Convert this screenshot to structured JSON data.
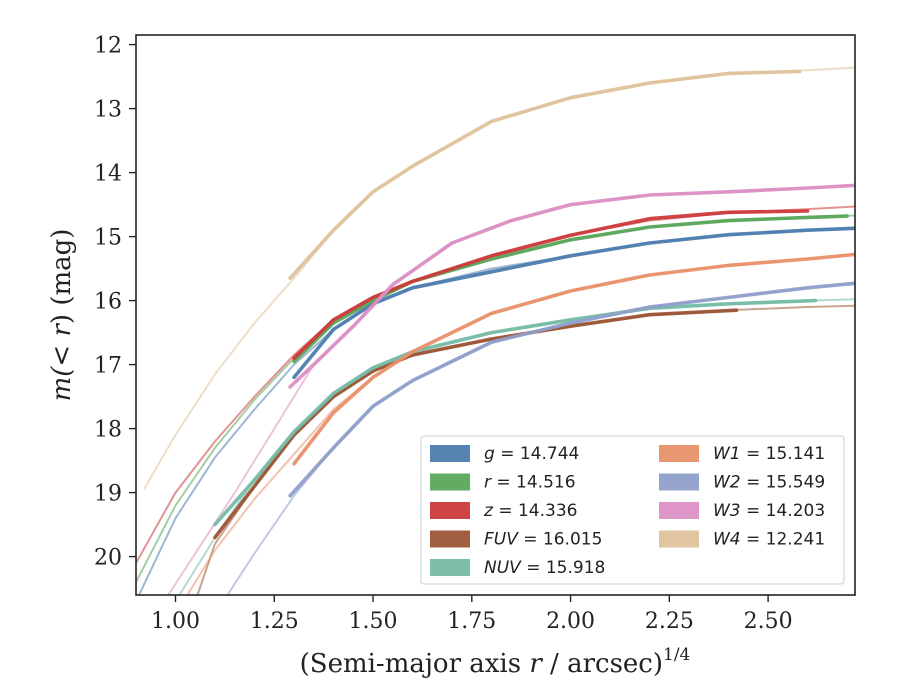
{
  "chart_data": {
    "type": "line",
    "title": "",
    "xlabel_prefix": "(Semi-major axis ",
    "xlabel_var": "r",
    "xlabel_suffix": " / arcsec)",
    "xlabel_power": "1/4",
    "ylabel_prefix": "m(",
    "ylabel_inner": "< r",
    "ylabel_suffix": ") (mag)",
    "xlim": [
      0.9,
      2.72
    ],
    "ylim": [
      20.6,
      11.85
    ],
    "y_inverted": true,
    "grid": false,
    "legend_position": "lower-right",
    "x_ticks": [
      1.0,
      1.25,
      1.5,
      1.75,
      2.0,
      2.25,
      2.5
    ],
    "x_tick_labels": [
      "1.00",
      "1.25",
      "1.50",
      "1.75",
      "2.00",
      "2.25",
      "2.50"
    ],
    "y_ticks": [
      12,
      13,
      14,
      15,
      16,
      17,
      18,
      19,
      20
    ],
    "y_tick_labels": [
      "12",
      "13",
      "14",
      "15",
      "16",
      "17",
      "18",
      "19",
      "20"
    ],
    "series": [
      {
        "name": "g = 14.744",
        "band": "g",
        "value": "14.744",
        "color": "#4c7dae",
        "faint": [
          [
            0.9,
            20.7
          ],
          [
            1.0,
            19.4
          ],
          [
            1.1,
            18.45
          ],
          [
            1.2,
            17.7
          ],
          [
            1.3,
            17.0
          ],
          [
            1.4,
            16.45
          ],
          [
            1.5,
            16.05
          ],
          [
            1.6,
            15.8
          ],
          [
            1.7,
            15.65
          ],
          [
            1.8,
            15.5
          ],
          [
            2.0,
            15.3
          ],
          [
            2.2,
            15.1
          ],
          [
            2.4,
            14.97
          ],
          [
            2.6,
            14.9
          ],
          [
            2.72,
            14.87
          ]
        ],
        "bold": [
          [
            1.3,
            17.2
          ],
          [
            1.4,
            16.45
          ],
          [
            1.5,
            16.05
          ],
          [
            1.6,
            15.8
          ],
          [
            1.8,
            15.55
          ],
          [
            2.0,
            15.3
          ],
          [
            2.2,
            15.1
          ],
          [
            2.4,
            14.97
          ],
          [
            2.6,
            14.9
          ],
          [
            2.72,
            14.87
          ]
        ]
      },
      {
        "name": "r = 14.516",
        "band": "r",
        "value": "14.516",
        "color": "#5aa65a",
        "faint": [
          [
            0.9,
            20.4
          ],
          [
            1.0,
            19.2
          ],
          [
            1.1,
            18.3
          ],
          [
            1.2,
            17.55
          ],
          [
            1.3,
            16.9
          ],
          [
            1.4,
            16.35
          ],
          [
            1.5,
            16.0
          ],
          [
            1.6,
            15.7
          ],
          [
            1.8,
            15.35
          ],
          [
            2.0,
            15.05
          ],
          [
            2.2,
            14.85
          ],
          [
            2.4,
            14.75
          ],
          [
            2.6,
            14.7
          ],
          [
            2.72,
            14.67
          ]
        ],
        "bold": [
          [
            1.3,
            16.95
          ],
          [
            1.4,
            16.35
          ],
          [
            1.5,
            16.0
          ],
          [
            1.6,
            15.7
          ],
          [
            1.8,
            15.35
          ],
          [
            2.0,
            15.05
          ],
          [
            2.2,
            14.85
          ],
          [
            2.4,
            14.75
          ],
          [
            2.6,
            14.7
          ],
          [
            2.7,
            14.68
          ]
        ]
      },
      {
        "name": "z = 14.336",
        "band": "z",
        "value": "14.336",
        "color": "#cc3a3a",
        "faint": [
          [
            0.9,
            20.1
          ],
          [
            1.0,
            19.0
          ],
          [
            1.1,
            18.2
          ],
          [
            1.2,
            17.5
          ],
          [
            1.3,
            16.85
          ],
          [
            1.4,
            16.3
          ],
          [
            1.5,
            15.95
          ],
          [
            1.6,
            15.7
          ],
          [
            1.8,
            15.3
          ],
          [
            2.0,
            14.98
          ],
          [
            2.2,
            14.75
          ],
          [
            2.4,
            14.63
          ],
          [
            2.6,
            14.57
          ],
          [
            2.72,
            14.53
          ]
        ],
        "bold": [
          [
            1.3,
            16.9
          ],
          [
            1.4,
            16.3
          ],
          [
            1.5,
            15.95
          ],
          [
            1.6,
            15.7
          ],
          [
            1.8,
            15.3
          ],
          [
            2.0,
            14.98
          ],
          [
            2.2,
            14.72
          ],
          [
            2.4,
            14.62
          ],
          [
            2.6,
            14.6
          ]
        ]
      },
      {
        "name": "FUV = 16.015",
        "band": "FUV",
        "value": "16.015",
        "color": "#9c5536",
        "faint": [
          [
            1.05,
            20.7
          ],
          [
            1.1,
            19.8
          ],
          [
            1.2,
            18.9
          ],
          [
            1.3,
            18.1
          ],
          [
            1.4,
            17.5
          ],
          [
            1.5,
            17.1
          ],
          [
            1.6,
            16.85
          ],
          [
            1.8,
            16.6
          ],
          [
            2.0,
            16.4
          ],
          [
            2.2,
            16.22
          ],
          [
            2.4,
            16.15
          ],
          [
            2.6,
            16.1
          ],
          [
            2.72,
            16.08
          ]
        ],
        "bold": [
          [
            1.1,
            19.7
          ],
          [
            1.2,
            18.9
          ],
          [
            1.3,
            18.1
          ],
          [
            1.4,
            17.5
          ],
          [
            1.5,
            17.1
          ],
          [
            1.6,
            16.85
          ],
          [
            1.8,
            16.6
          ],
          [
            2.0,
            16.4
          ],
          [
            2.2,
            16.22
          ],
          [
            2.42,
            16.15
          ]
        ]
      },
      {
        "name": "NUV = 15.918",
        "band": "NUV",
        "value": "15.918",
        "color": "#76bca6",
        "faint": [
          [
            1.0,
            20.7
          ],
          [
            1.1,
            19.7
          ],
          [
            1.2,
            18.8
          ],
          [
            1.3,
            18.05
          ],
          [
            1.4,
            17.45
          ],
          [
            1.5,
            17.05
          ],
          [
            1.6,
            16.8
          ],
          [
            1.8,
            16.5
          ],
          [
            2.0,
            16.3
          ],
          [
            2.2,
            16.12
          ],
          [
            2.4,
            16.05
          ],
          [
            2.6,
            16.0
          ],
          [
            2.72,
            15.98
          ]
        ],
        "bold": [
          [
            1.1,
            19.5
          ],
          [
            1.2,
            18.8
          ],
          [
            1.3,
            18.05
          ],
          [
            1.4,
            17.45
          ],
          [
            1.5,
            17.05
          ],
          [
            1.6,
            16.8
          ],
          [
            1.8,
            16.5
          ],
          [
            2.0,
            16.3
          ],
          [
            2.2,
            16.12
          ],
          [
            2.4,
            16.05
          ],
          [
            2.62,
            16.0
          ]
        ]
      },
      {
        "name": "W1 = 15.141",
        "band": "W1",
        "value": "15.141",
        "color": "#e8916c",
        "faint": [
          [
            1.0,
            20.9
          ],
          [
            1.1,
            19.9
          ],
          [
            1.2,
            19.1
          ],
          [
            1.3,
            18.4
          ],
          [
            1.4,
            17.7
          ],
          [
            1.5,
            17.2
          ],
          [
            1.6,
            16.8
          ],
          [
            1.7,
            16.5
          ],
          [
            1.8,
            16.2
          ],
          [
            2.0,
            15.85
          ],
          [
            2.2,
            15.6
          ],
          [
            2.4,
            15.45
          ],
          [
            2.6,
            15.35
          ],
          [
            2.72,
            15.27
          ]
        ],
        "bold": [
          [
            1.3,
            18.55
          ],
          [
            1.4,
            17.75
          ],
          [
            1.5,
            17.2
          ],
          [
            1.6,
            16.8
          ],
          [
            1.7,
            16.5
          ],
          [
            1.8,
            16.2
          ],
          [
            2.0,
            15.85
          ],
          [
            2.2,
            15.6
          ],
          [
            2.4,
            15.45
          ],
          [
            2.6,
            15.35
          ],
          [
            2.72,
            15.28
          ]
        ]
      },
      {
        "name": "W2 = 15.549",
        "band": "W2",
        "value": "15.549",
        "color": "#8f9fca",
        "faint": [
          [
            1.1,
            20.9
          ],
          [
            1.2,
            19.95
          ],
          [
            1.3,
            19.05
          ],
          [
            1.4,
            18.3
          ],
          [
            1.5,
            17.65
          ],
          [
            1.6,
            17.25
          ],
          [
            1.7,
            16.95
          ],
          [
            1.8,
            16.65
          ],
          [
            2.0,
            16.35
          ],
          [
            2.2,
            16.1
          ],
          [
            2.4,
            15.95
          ],
          [
            2.6,
            15.8
          ],
          [
            2.72,
            15.73
          ]
        ],
        "bold": [
          [
            1.29,
            19.05
          ],
          [
            1.4,
            18.3
          ],
          [
            1.5,
            17.65
          ],
          [
            1.6,
            17.25
          ],
          [
            1.7,
            16.95
          ],
          [
            1.8,
            16.65
          ],
          [
            2.0,
            16.35
          ],
          [
            2.2,
            16.1
          ],
          [
            2.4,
            15.95
          ],
          [
            2.6,
            15.8
          ],
          [
            2.72,
            15.73
          ]
        ]
      },
      {
        "name": "W3 = 14.203",
        "band": "W3",
        "value": "14.203",
        "color": "#dc8fc4",
        "faint": [
          [
            0.95,
            20.9
          ],
          [
            1.05,
            19.95
          ],
          [
            1.15,
            19.0
          ],
          [
            1.25,
            18.0
          ],
          [
            1.35,
            17.0
          ],
          [
            1.45,
            16.4
          ],
          [
            1.55,
            15.75
          ],
          [
            1.7,
            15.1
          ],
          [
            1.85,
            14.75
          ],
          [
            2.0,
            14.5
          ],
          [
            2.2,
            14.35
          ],
          [
            2.4,
            14.3
          ],
          [
            2.6,
            14.24
          ],
          [
            2.72,
            14.2
          ]
        ],
        "bold": [
          [
            1.29,
            17.35
          ],
          [
            1.35,
            17.0
          ],
          [
            1.45,
            16.4
          ],
          [
            1.55,
            15.75
          ],
          [
            1.7,
            15.1
          ],
          [
            1.85,
            14.75
          ],
          [
            2.0,
            14.5
          ],
          [
            2.2,
            14.35
          ],
          [
            2.4,
            14.3
          ],
          [
            2.6,
            14.24
          ],
          [
            2.72,
            14.2
          ]
        ]
      },
      {
        "name": "W4 = 12.241",
        "band": "W4",
        "value": "12.241",
        "color": "#dfc29b",
        "faint": [
          [
            0.92,
            18.95
          ],
          [
            1.0,
            18.1
          ],
          [
            1.1,
            17.15
          ],
          [
            1.2,
            16.35
          ],
          [
            1.3,
            15.65
          ],
          [
            1.4,
            14.9
          ],
          [
            1.5,
            14.3
          ],
          [
            1.6,
            13.9
          ],
          [
            1.7,
            13.55
          ],
          [
            1.8,
            13.2
          ],
          [
            2.0,
            12.83
          ],
          [
            2.2,
            12.6
          ],
          [
            2.4,
            12.45
          ],
          [
            2.6,
            12.4
          ],
          [
            2.72,
            12.36
          ]
        ],
        "bold": [
          [
            1.29,
            15.65
          ],
          [
            1.4,
            14.9
          ],
          [
            1.5,
            14.3
          ],
          [
            1.6,
            13.9
          ],
          [
            1.7,
            13.55
          ],
          [
            1.8,
            13.2
          ],
          [
            2.0,
            12.83
          ],
          [
            2.2,
            12.6
          ],
          [
            2.4,
            12.45
          ],
          [
            2.58,
            12.42
          ]
        ]
      }
    ]
  }
}
